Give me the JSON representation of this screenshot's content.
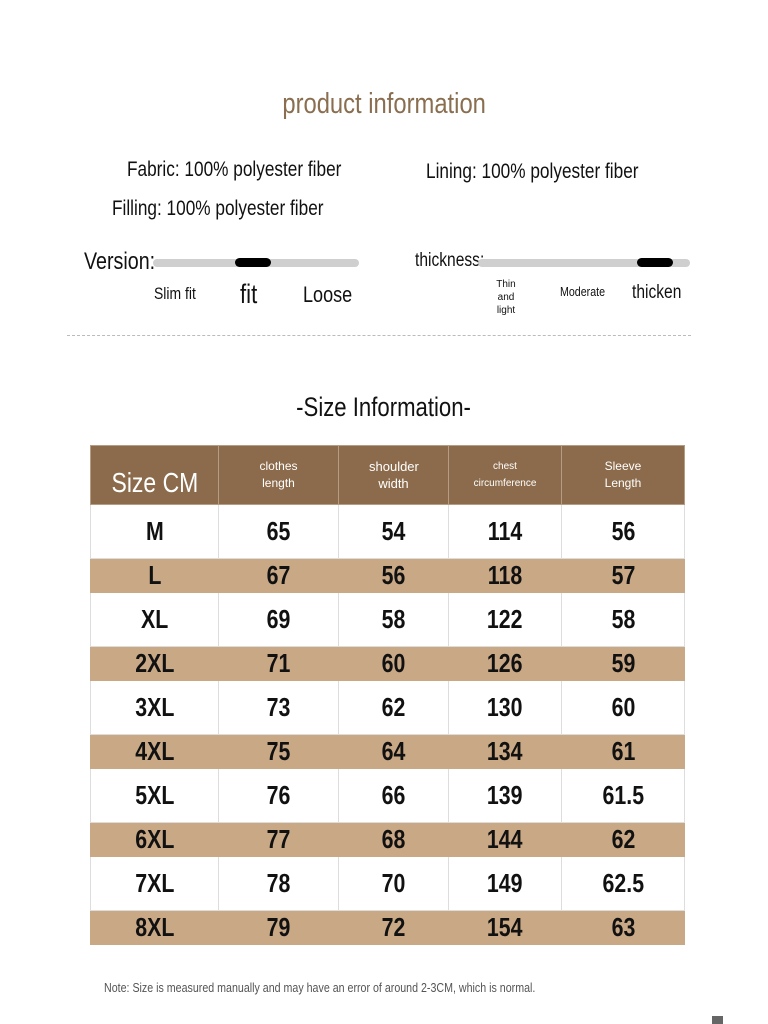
{
  "title": "product information",
  "materials": {
    "fabric": "Fabric: 100% polyester fiber",
    "lining": "Lining: 100% polyester fiber",
    "filling": "Filling: 100% polyester fiber"
  },
  "version": {
    "label": "Version:",
    "options": [
      "Slim fit",
      "fit",
      "Loose"
    ],
    "selected": "fit"
  },
  "thickness": {
    "label": "thickness:",
    "options": [
      "Thin and light",
      "Moderate",
      "thicken"
    ],
    "selected": "thicken"
  },
  "size_title": "-Size Information-",
  "table": {
    "headers": [
      "Size CM",
      "clothes length",
      "shoulder width",
      "chest circumference",
      "Sleeve Length"
    ],
    "rows": [
      [
        "M",
        "65",
        "54",
        "114",
        "56"
      ],
      [
        "L",
        "67",
        "56",
        "118",
        "57"
      ],
      [
        "XL",
        "69",
        "58",
        "122",
        "58"
      ],
      [
        "2XL",
        "71",
        "60",
        "126",
        "59"
      ],
      [
        "3XL",
        "73",
        "62",
        "130",
        "60"
      ],
      [
        "4XL",
        "75",
        "64",
        "134",
        "61"
      ],
      [
        "5XL",
        "76",
        "66",
        "139",
        "61.5"
      ],
      [
        "6XL",
        "77",
        "68",
        "144",
        "62"
      ],
      [
        "7XL",
        "78",
        "70",
        "149",
        "62.5"
      ],
      [
        "8XL",
        "79",
        "72",
        "154",
        "63"
      ]
    ]
  },
  "note": "Note: Size is measured manually and may have an error of around 2-3CM, which is normal.",
  "colors": {
    "header": "#8b6b4b",
    "band": "#c9a886",
    "title": "#8a6e50"
  }
}
